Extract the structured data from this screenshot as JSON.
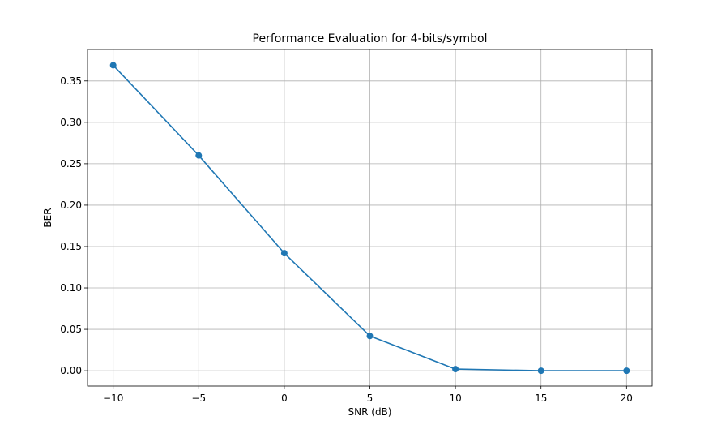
{
  "chart_data": {
    "type": "line",
    "title": "Performance Evaluation for 4-bits/symbol",
    "xlabel": "SNR (dB)",
    "ylabel": "BER",
    "x": [
      -10,
      -5,
      0,
      5,
      10,
      15,
      20
    ],
    "series": [
      {
        "values": [
          0.369,
          0.26,
          0.142,
          0.042,
          0.002,
          0.0,
          0.0
        ],
        "color": "#1f77b4",
        "marker": "circle"
      }
    ],
    "xlim": [
      -11.5,
      21.5
    ],
    "ylim": [
      -0.0185,
      0.388
    ],
    "xticks": [
      -10,
      -5,
      0,
      5,
      10,
      15,
      20
    ],
    "xtick_labels": [
      "−10",
      "−5",
      "0",
      "5",
      "10",
      "15",
      "20"
    ],
    "yticks": [
      0.0,
      0.05,
      0.1,
      0.15,
      0.2,
      0.25,
      0.3,
      0.35
    ],
    "ytick_labels": [
      "0.00",
      "0.05",
      "0.10",
      "0.15",
      "0.20",
      "0.25",
      "0.30",
      "0.35"
    ],
    "grid": true,
    "legend": "none"
  }
}
